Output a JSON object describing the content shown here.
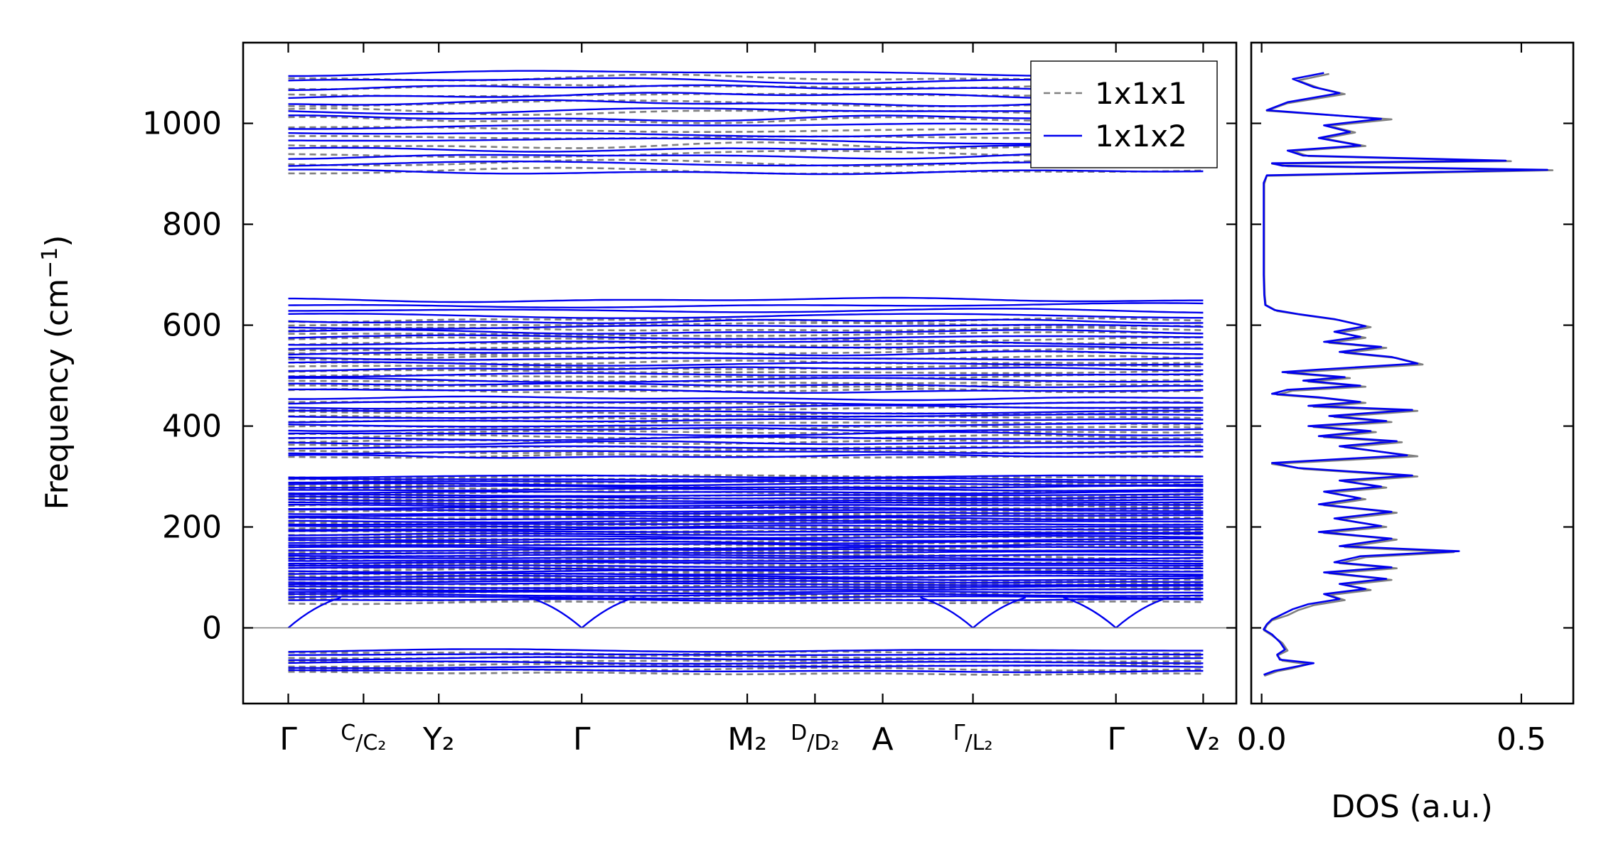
{
  "chart_data": [
    {
      "type": "line",
      "subtype": "phonon-band-structure",
      "ylabel": "Frequency (cm",
      "ylabel_sup": "−1",
      "ylabel_end": ")",
      "ylim": [
        -150,
        1160
      ],
      "yticks": [
        0,
        200,
        400,
        600,
        800,
        1000
      ],
      "xlim": [
        -0.3,
        6.3
      ],
      "k_points": [
        {
          "x": 0.0,
          "label": "Γ"
        },
        {
          "x": 0.5,
          "label": "C",
          "label_sub": "/C₂"
        },
        {
          "x": 1.0,
          "label": "Y₂"
        },
        {
          "x": 1.95,
          "label": "Γ"
        },
        {
          "x": 3.05,
          "label": "M₂",
          "label_sub": ""
        },
        {
          "x": 3.5,
          "label": "D",
          "label_sub": "/D₂"
        },
        {
          "x": 3.95,
          "label": "A"
        },
        {
          "x": 4.55,
          "label": "Γ",
          "label_sub": "/L₂"
        },
        {
          "x": 5.5,
          "label": "Γ"
        },
        {
          "x": 6.08,
          "label": "V₂"
        }
      ],
      "zero_line": 0,
      "legend": {
        "placement": "top-right",
        "entries": [
          {
            "name": "1x1x1",
            "color": "#808080",
            "style": "dashed"
          },
          {
            "name": "1x1x2",
            "color": "#0000ee",
            "style": "solid"
          }
        ]
      },
      "series": [
        {
          "name": "1x1x1",
          "color": "#808080",
          "style": "dashed",
          "band_groups": [
            {
              "range": [
                -90,
                -50
              ],
              "count": 6
            },
            {
              "range": [
                50,
                300
              ],
              "count": 40
            },
            {
              "range": [
                340,
                445
              ],
              "count": 12
            },
            {
              "range": [
                470,
                610
              ],
              "count": 16
            },
            {
              "range": [
                905,
                1090
              ],
              "count": 12
            }
          ]
        },
        {
          "name": "1x1x2",
          "color": "#0000ee",
          "style": "solid",
          "band_groups": [
            {
              "range": [
                -85,
                -45
              ],
              "count": 6
            },
            {
              "range": [
                55,
                300
              ],
              "count": 48
            },
            {
              "range": [
                340,
                455
              ],
              "count": 14
            },
            {
              "range": [
                470,
                650
              ],
              "count": 18
            },
            {
              "range": [
                905,
                1100
              ],
              "count": 14
            }
          ]
        }
      ]
    },
    {
      "type": "line",
      "subtype": "density-of-states",
      "xlabel": "DOS (a.u.)",
      "xlim": [
        -0.02,
        0.6
      ],
      "xticks": [
        0.0,
        0.5
      ],
      "xtick_labels": [
        "0.0",
        "0.5"
      ],
      "ylim": [
        -150,
        1160
      ],
      "series": [
        {
          "name": "1x1x1",
          "color": "#808080",
          "points": [
            [
              0.13,
              1098
            ],
            [
              0.07,
              1085
            ],
            [
              0.11,
              1070
            ],
            [
              0.16,
              1058
            ],
            [
              0.05,
              1040
            ],
            [
              0.01,
              1025
            ],
            [
              0.25,
              1008
            ],
            [
              0.13,
              995
            ],
            [
              0.18,
              982
            ],
            [
              0.12,
              970
            ],
            [
              0.2,
              955
            ],
            [
              0.06,
              945
            ],
            [
              0.09,
              935
            ],
            [
              0.48,
              925
            ],
            [
              0.02,
              920
            ],
            [
              0.05,
              915
            ],
            [
              0.56,
              907
            ],
            [
              0.01,
              896
            ],
            [
              0.005,
              880
            ],
            [
              0.005,
              860
            ],
            [
              0.005,
              800
            ],
            [
              0.005,
              700
            ],
            [
              0.006,
              660
            ],
            [
              0.008,
              640
            ],
            [
              0.03,
              628
            ],
            [
              0.08,
              620
            ],
            [
              0.15,
              610
            ],
            [
              0.21,
              596
            ],
            [
              0.15,
              585
            ],
            [
              0.2,
              575
            ],
            [
              0.13,
              565
            ],
            [
              0.24,
              555
            ],
            [
              0.16,
              545
            ],
            [
              0.26,
              535
            ],
            [
              0.31,
              522
            ],
            [
              0.12,
              510
            ],
            [
              0.05,
              505
            ],
            [
              0.17,
              495
            ],
            [
              0.09,
              488
            ],
            [
              0.2,
              478
            ],
            [
              0.06,
              470
            ],
            [
              0.03,
              462
            ],
            [
              0.12,
              455
            ],
            [
              0.2,
              446
            ],
            [
              0.1,
              438
            ],
            [
              0.3,
              430
            ],
            [
              0.14,
              418
            ],
            [
              0.25,
              408
            ],
            [
              0.1,
              398
            ],
            [
              0.22,
              388
            ],
            [
              0.12,
              378
            ],
            [
              0.27,
              368
            ],
            [
              0.16,
              358
            ],
            [
              0.3,
              340
            ],
            [
              0.02,
              325
            ],
            [
              0.08,
              315
            ],
            [
              0.3,
              300
            ],
            [
              0.16,
              290
            ],
            [
              0.24,
              278
            ],
            [
              0.13,
              268
            ],
            [
              0.2,
              255
            ],
            [
              0.12,
              243
            ],
            [
              0.26,
              228
            ],
            [
              0.15,
              215
            ],
            [
              0.24,
              200
            ],
            [
              0.12,
              188
            ],
            [
              0.26,
              175
            ],
            [
              0.16,
              160
            ],
            [
              0.37,
              150
            ],
            [
              0.2,
              140
            ],
            [
              0.15,
              128
            ],
            [
              0.26,
              118
            ],
            [
              0.13,
              108
            ],
            [
              0.25,
              95
            ],
            [
              0.16,
              85
            ],
            [
              0.21,
              75
            ],
            [
              0.13,
              65
            ],
            [
              0.16,
              55
            ],
            [
              0.1,
              45
            ],
            [
              0.07,
              35
            ],
            [
              0.05,
              25
            ],
            [
              0.02,
              15
            ],
            [
              0.01,
              5
            ],
            [
              0.005,
              -5
            ],
            [
              0.02,
              -15
            ],
            [
              0.04,
              -30
            ],
            [
              0.05,
              -45
            ],
            [
              0.03,
              -55
            ],
            [
              0.04,
              -65
            ],
            [
              0.09,
              -72
            ],
            [
              0.06,
              -80
            ],
            [
              0.03,
              -86
            ],
            [
              0.005,
              -95
            ]
          ]
        },
        {
          "name": "1x1x2",
          "color": "#0000ee",
          "points": [
            [
              0.12,
              1100
            ],
            [
              0.06,
              1088
            ],
            [
              0.1,
              1072
            ],
            [
              0.15,
              1060
            ],
            [
              0.05,
              1042
            ],
            [
              0.01,
              1026
            ],
            [
              0.23,
              1009
            ],
            [
              0.12,
              996
            ],
            [
              0.17,
              983
            ],
            [
              0.11,
              971
            ],
            [
              0.19,
              956
            ],
            [
              0.05,
              946
            ],
            [
              0.08,
              936
            ],
            [
              0.47,
              926
            ],
            [
              0.02,
              921
            ],
            [
              0.04,
              916
            ],
            [
              0.55,
              908
            ],
            [
              0.01,
              897
            ],
            [
              0.004,
              882
            ],
            [
              0.004,
              860
            ],
            [
              0.004,
              800
            ],
            [
              0.004,
              700
            ],
            [
              0.005,
              660
            ],
            [
              0.007,
              640
            ],
            [
              0.025,
              630
            ],
            [
              0.07,
              622
            ],
            [
              0.14,
              612
            ],
            [
              0.2,
              598
            ],
            [
              0.14,
              587
            ],
            [
              0.19,
              577
            ],
            [
              0.12,
              567
            ],
            [
              0.23,
              557
            ],
            [
              0.15,
              547
            ],
            [
              0.25,
              537
            ],
            [
              0.3,
              524
            ],
            [
              0.11,
              512
            ],
            [
              0.04,
              507
            ],
            [
              0.16,
              497
            ],
            [
              0.08,
              490
            ],
            [
              0.19,
              480
            ],
            [
              0.05,
              472
            ],
            [
              0.02,
              464
            ],
            [
              0.11,
              457
            ],
            [
              0.19,
              448
            ],
            [
              0.09,
              440
            ],
            [
              0.29,
              432
            ],
            [
              0.13,
              420
            ],
            [
              0.24,
              410
            ],
            [
              0.09,
              400
            ],
            [
              0.21,
              390
            ],
            [
              0.11,
              380
            ],
            [
              0.26,
              370
            ],
            [
              0.15,
              360
            ],
            [
              0.28,
              342
            ],
            [
              0.02,
              327
            ],
            [
              0.07,
              317
            ],
            [
              0.29,
              302
            ],
            [
              0.15,
              292
            ],
            [
              0.23,
              280
            ],
            [
              0.12,
              270
            ],
            [
              0.19,
              257
            ],
            [
              0.11,
              245
            ],
            [
              0.25,
              230
            ],
            [
              0.14,
              217
            ],
            [
              0.23,
              202
            ],
            [
              0.11,
              190
            ],
            [
              0.25,
              177
            ],
            [
              0.15,
              162
            ],
            [
              0.38,
              152
            ],
            [
              0.19,
              142
            ],
            [
              0.14,
              130
            ],
            [
              0.25,
              120
            ],
            [
              0.12,
              110
            ],
            [
              0.24,
              97
            ],
            [
              0.15,
              87
            ],
            [
              0.2,
              77
            ],
            [
              0.12,
              67
            ],
            [
              0.15,
              57
            ],
            [
              0.09,
              47
            ],
            [
              0.06,
              37
            ],
            [
              0.04,
              27
            ],
            [
              0.02,
              17
            ],
            [
              0.01,
              7
            ],
            [
              0.004,
              -3
            ],
            [
              0.02,
              -13
            ],
            [
              0.035,
              -28
            ],
            [
              0.045,
              -43
            ],
            [
              0.03,
              -53
            ],
            [
              0.035,
              -63
            ],
            [
              0.1,
              -70
            ],
            [
              0.06,
              -78
            ],
            [
              0.025,
              -85
            ],
            [
              0.004,
              -93
            ]
          ]
        }
      ]
    }
  ]
}
